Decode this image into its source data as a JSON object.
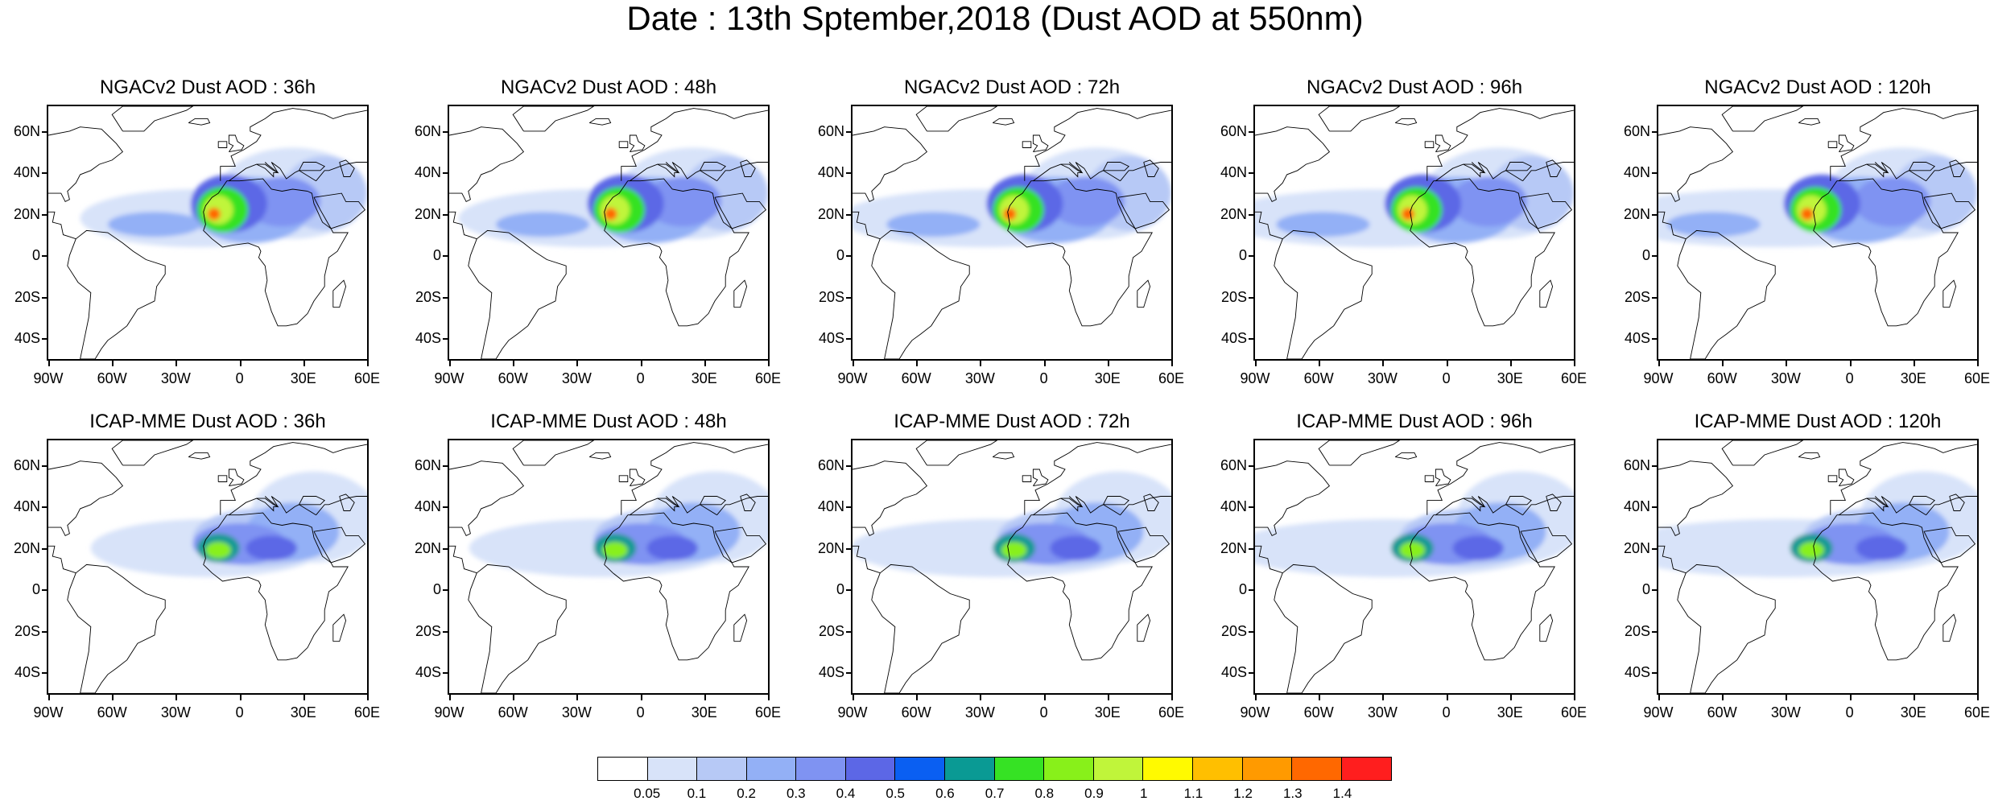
{
  "title": "Date : 13th Sptember,2018 (Dust AOD at 550nm)",
  "rows": [
    {
      "panels": [
        {
          "title": "NGACv2 Dust AOD : 36h"
        },
        {
          "title": "NGACv2 Dust AOD : 48h"
        },
        {
          "title": "NGACv2 Dust AOD : 72h"
        },
        {
          "title": "NGACv2 Dust AOD : 96h"
        },
        {
          "title": "NGACv2 Dust AOD : 120h"
        }
      ]
    },
    {
      "panels": [
        {
          "title": "ICAP-MME Dust AOD : 36h"
        },
        {
          "title": "ICAP-MME Dust AOD : 48h"
        },
        {
          "title": "ICAP-MME Dust AOD : 72h"
        },
        {
          "title": "ICAP-MME Dust AOD : 96h"
        },
        {
          "title": "ICAP-MME Dust AOD : 120h"
        }
      ]
    }
  ],
  "lat_labels": [
    "60N",
    "40N",
    "20N",
    "0",
    "20S",
    "40S"
  ],
  "lon_labels": [
    "90W",
    "60W",
    "30W",
    "0",
    "30E",
    "60E"
  ],
  "colorbar": {
    "labels": [
      "0.05",
      "0.1",
      "0.2",
      "0.3",
      "0.4",
      "0.5",
      "0.6",
      "0.7",
      "0.8",
      "0.9",
      "1",
      "1.1",
      "1.2",
      "1.3",
      "1.4"
    ],
    "colors": [
      "#ffffff",
      "#d8e3f9",
      "#b7c9f6",
      "#93b0f6",
      "#7f93f2",
      "#5c67e6",
      "#0a5ff2",
      "#0a9a94",
      "#36e224",
      "#88f01a",
      "#c0f53a",
      "#fffa00",
      "#ffbf00",
      "#ff9a00",
      "#ff6800",
      "#ff1e1e"
    ]
  }
}
